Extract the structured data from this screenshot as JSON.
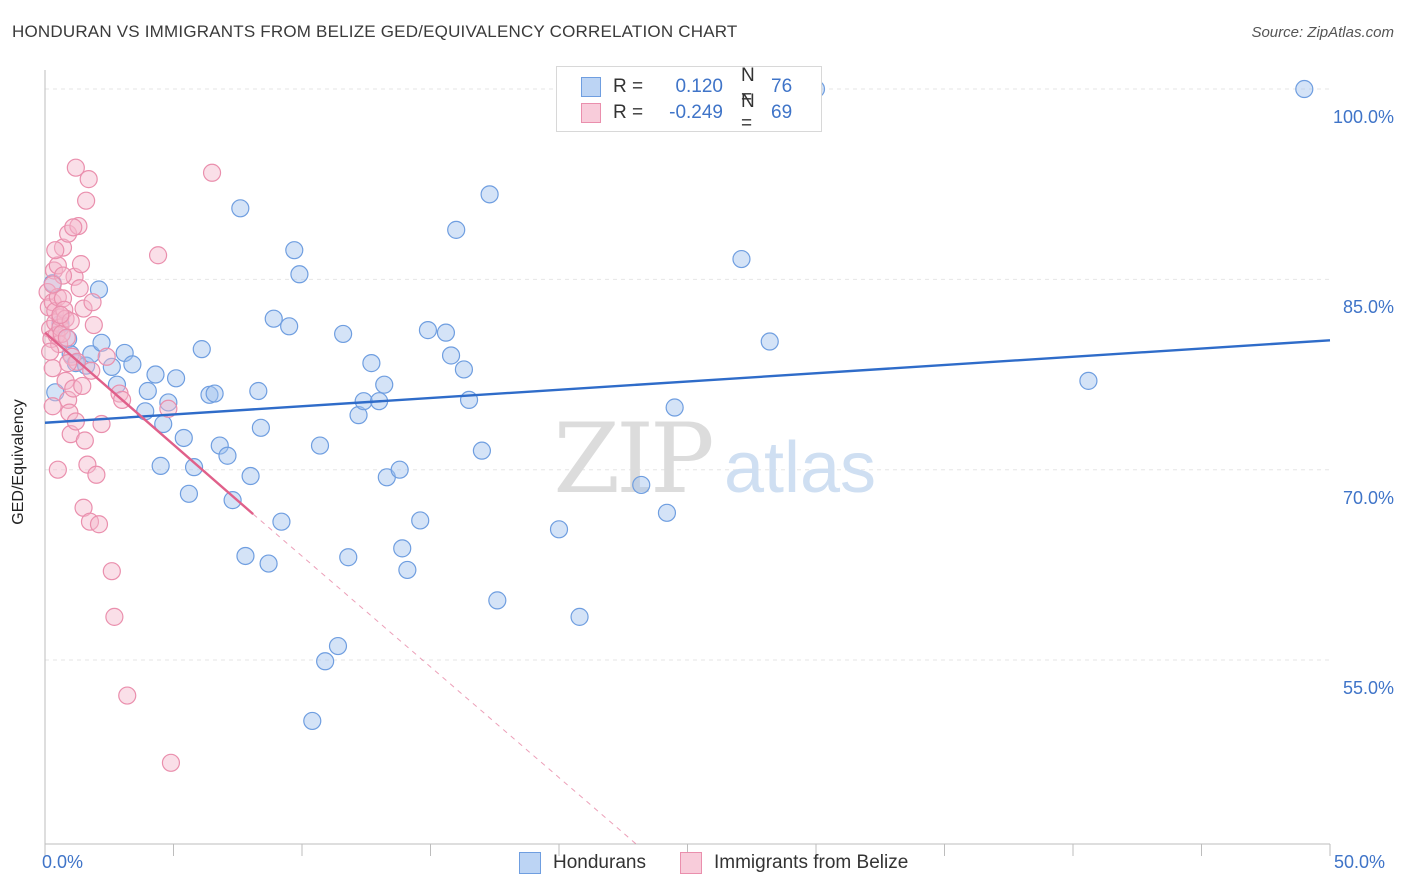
{
  "title": "HONDURAN VS IMMIGRANTS FROM BELIZE GED/EQUIVALENCY CORRELATION CHART",
  "source": "Source: ZipAtlas.com",
  "watermark": {
    "zip": "ZIP",
    "atlas": "atlas"
  },
  "legend": {
    "rows": [
      {
        "r_label": "R =",
        "r_value": "0.120",
        "n_label": "N =",
        "n_value": "76",
        "color": "#9fc1ee",
        "border": "#5b8fd6"
      },
      {
        "r_label": "R =",
        "r_value": "-0.249",
        "n_label": "N =",
        "n_value": "69",
        "color": "#f5b8cb",
        "border": "#e77fa0"
      }
    ]
  },
  "bottom_legend": [
    {
      "label": "Hondurans",
      "color": "#9fc1ee",
      "border": "#5b8fd6"
    },
    {
      "label": "Immigrants from Belize",
      "color": "#f5b8cb",
      "border": "#e77fa0"
    }
  ],
  "chart_data": {
    "type": "scatter",
    "ylabel": "GED/Equivalency",
    "xlim": [
      0,
      50
    ],
    "ylim": [
      40.5,
      101.5
    ],
    "x_tick_labels": [
      "0.0%",
      "50.0%"
    ],
    "y_ticks": [
      55,
      70,
      85,
      100
    ],
    "y_tick_labels": [
      "55.0%",
      "70.0%",
      "85.0%",
      "100.0%"
    ],
    "grid": true,
    "legend_placement": "top-center",
    "series": [
      {
        "name": "Hondurans",
        "color": "#6f9ee0",
        "fill": "rgba(159,193,238,0.45)",
        "trend": {
          "x": [
            0,
            50
          ],
          "y": [
            73.7,
            80.2
          ],
          "color": "#2f6cc9"
        },
        "points": [
          [
            0.3,
            84.7
          ],
          [
            0.6,
            81.5
          ],
          [
            0.9,
            80.3
          ],
          [
            1.0,
            79.1
          ],
          [
            1.2,
            78.4
          ],
          [
            1.6,
            78.2
          ],
          [
            1.8,
            79.1
          ],
          [
            2.2,
            80.0
          ],
          [
            2.6,
            78.1
          ],
          [
            3.1,
            79.2
          ],
          [
            3.4,
            78.3
          ],
          [
            2.8,
            76.7
          ],
          [
            3.9,
            74.6
          ],
          [
            4.0,
            76.2
          ],
          [
            4.3,
            77.5
          ],
          [
            4.5,
            70.3
          ],
          [
            4.6,
            73.6
          ],
          [
            4.8,
            75.3
          ],
          [
            5.1,
            77.2
          ],
          [
            5.4,
            72.5
          ],
          [
            5.6,
            68.1
          ],
          [
            5.8,
            70.2
          ],
          [
            6.1,
            79.5
          ],
          [
            6.4,
            75.9
          ],
          [
            6.6,
            76.0
          ],
          [
            6.8,
            71.9
          ],
          [
            7.1,
            71.1
          ],
          [
            7.3,
            67.6
          ],
          [
            7.6,
            90.6
          ],
          [
            7.8,
            63.2
          ],
          [
            8.0,
            69.5
          ],
          [
            8.3,
            76.2
          ],
          [
            8.4,
            73.3
          ],
          [
            8.7,
            62.6
          ],
          [
            8.9,
            81.9
          ],
          [
            9.2,
            65.9
          ],
          [
            9.5,
            81.3
          ],
          [
            9.7,
            87.3
          ],
          [
            9.9,
            85.4
          ],
          [
            10.4,
            50.2
          ],
          [
            10.7,
            71.9
          ],
          [
            10.9,
            54.9
          ],
          [
            11.4,
            56.1
          ],
          [
            11.6,
            80.7
          ],
          [
            11.8,
            63.1
          ],
          [
            12.2,
            74.3
          ],
          [
            12.4,
            75.4
          ],
          [
            12.7,
            78.4
          ],
          [
            13.0,
            75.4
          ],
          [
            13.2,
            76.7
          ],
          [
            13.3,
            69.4
          ],
          [
            13.8,
            70.0
          ],
          [
            13.9,
            63.8
          ],
          [
            14.1,
            62.1
          ],
          [
            14.6,
            66.0
          ],
          [
            14.9,
            81.0
          ],
          [
            15.6,
            80.8
          ],
          [
            15.8,
            79.0
          ],
          [
            16.0,
            88.9
          ],
          [
            16.3,
            77.9
          ],
          [
            16.5,
            75.5
          ],
          [
            17.0,
            71.5
          ],
          [
            17.3,
            91.7
          ],
          [
            17.6,
            59.7
          ],
          [
            20.0,
            65.3
          ],
          [
            20.8,
            58.4
          ],
          [
            23.2,
            68.8
          ],
          [
            24.2,
            66.6
          ],
          [
            24.5,
            74.9
          ],
          [
            27.1,
            86.6
          ],
          [
            28.2,
            80.1
          ],
          [
            30.0,
            100.0
          ],
          [
            40.6,
            77.0
          ],
          [
            49.0,
            100.0
          ],
          [
            0.4,
            76.1
          ],
          [
            2.1,
            84.2
          ]
        ]
      },
      {
        "name": "Immigrants from Belize",
        "color": "#ea8fad",
        "fill": "rgba(245,184,203,0.45)",
        "trend": {
          "x": [
            0,
            8.1
          ],
          "y": [
            80.8,
            66.5
          ],
          "color": "#e0608a",
          "extend_to": [
            23.0,
            40.5
          ]
        },
        "points": [
          [
            0.1,
            84.0
          ],
          [
            0.15,
            82.8
          ],
          [
            0.2,
            81.1
          ],
          [
            0.25,
            80.3
          ],
          [
            0.3,
            83.2
          ],
          [
            0.3,
            78.0
          ],
          [
            0.35,
            85.7
          ],
          [
            0.4,
            82.5
          ],
          [
            0.4,
            81.6
          ],
          [
            0.45,
            80.6
          ],
          [
            0.5,
            83.6
          ],
          [
            0.5,
            86.1
          ],
          [
            0.55,
            79.9
          ],
          [
            0.6,
            82.0
          ],
          [
            0.6,
            81.2
          ],
          [
            0.65,
            80.7
          ],
          [
            0.7,
            87.5
          ],
          [
            0.7,
            83.5
          ],
          [
            0.75,
            82.6
          ],
          [
            0.8,
            81.9
          ],
          [
            0.8,
            77.0
          ],
          [
            0.85,
            80.4
          ],
          [
            0.9,
            75.5
          ],
          [
            0.9,
            88.6
          ],
          [
            0.95,
            74.5
          ],
          [
            1.0,
            81.7
          ],
          [
            1.0,
            72.8
          ],
          [
            1.05,
            78.9
          ],
          [
            1.1,
            76.4
          ],
          [
            1.15,
            85.2
          ],
          [
            1.2,
            93.8
          ],
          [
            1.2,
            73.8
          ],
          [
            1.25,
            78.5
          ],
          [
            1.3,
            89.2
          ],
          [
            1.35,
            84.3
          ],
          [
            1.4,
            86.2
          ],
          [
            1.45,
            76.6
          ],
          [
            1.5,
            67.0
          ],
          [
            1.5,
            82.7
          ],
          [
            1.55,
            72.3
          ],
          [
            1.6,
            91.2
          ],
          [
            1.65,
            70.4
          ],
          [
            1.7,
            92.9
          ],
          [
            1.75,
            65.9
          ],
          [
            1.8,
            77.8
          ],
          [
            1.85,
            83.2
          ],
          [
            1.9,
            81.4
          ],
          [
            2.0,
            69.6
          ],
          [
            2.1,
            65.7
          ],
          [
            2.2,
            73.6
          ],
          [
            2.4,
            78.9
          ],
          [
            2.6,
            62.0
          ],
          [
            2.7,
            58.4
          ],
          [
            2.9,
            76.0
          ],
          [
            3.0,
            75.5
          ],
          [
            3.2,
            52.2
          ],
          [
            4.4,
            86.9
          ],
          [
            4.8,
            74.8
          ],
          [
            4.9,
            46.9
          ],
          [
            6.5,
            93.4
          ],
          [
            0.2,
            79.3
          ],
          [
            0.3,
            75.0
          ],
          [
            0.5,
            70.0
          ],
          [
            1.1,
            89.1
          ],
          [
            0.6,
            82.2
          ],
          [
            0.7,
            85.3
          ],
          [
            0.4,
            87.3
          ],
          [
            0.9,
            78.4
          ],
          [
            0.3,
            84.6
          ]
        ]
      }
    ]
  }
}
